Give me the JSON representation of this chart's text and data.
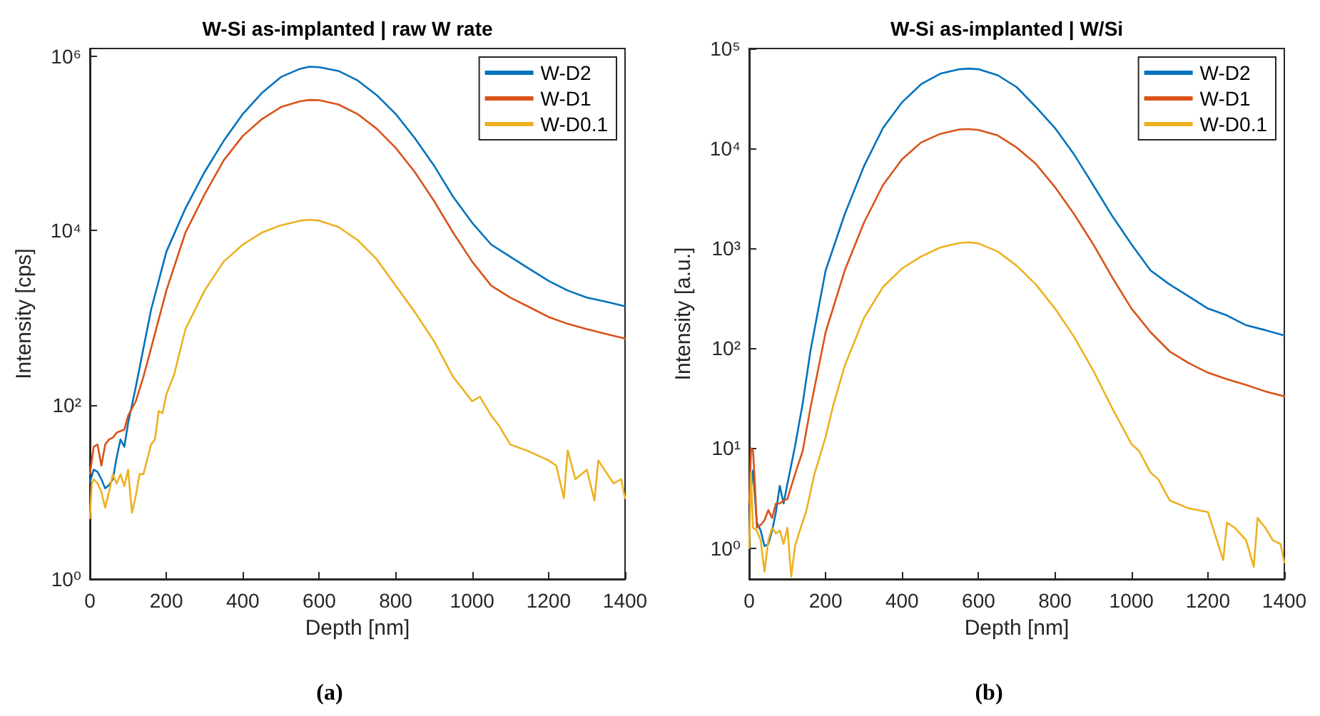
{
  "chart_data": [
    {
      "type": "line",
      "title": "W-Si as-implanted | raw W rate",
      "xlabel": "Depth [nm]",
      "ylabel": "Intensity [cps]",
      "annotations": [
        "(a)"
      ],
      "log": "y",
      "grid": false,
      "legend": "top right",
      "marker": "none",
      "line_style": "solid",
      "xlim": [
        0,
        1400
      ],
      "xticks": [
        0,
        200,
        400,
        600,
        800,
        1000,
        1200,
        1400
      ],
      "ylim": [
        1,
        1230000
      ],
      "yticks": [
        {
          "value": 1,
          "label": "10⁰"
        },
        {
          "value": 100,
          "label": "10²"
        },
        {
          "value": 10000,
          "label": "10⁴"
        },
        {
          "value": 1000000,
          "label": "10⁶"
        }
      ],
      "series": [
        {
          "name": "W-D2",
          "color": "#0072bd",
          "x": [
            0,
            10,
            20,
            30,
            40,
            50,
            60,
            70,
            80,
            90,
            100,
            120,
            140,
            160,
            200,
            250,
            300,
            350,
            400,
            450,
            500,
            550,
            575,
            600,
            650,
            700,
            750,
            800,
            850,
            900,
            950,
            1000,
            1050,
            1100,
            1150,
            1200,
            1250,
            1300,
            1350,
            1400
          ],
          "values": [
            13,
            18,
            17,
            14,
            11,
            12,
            14,
            25,
            40,
            33,
            62,
            160,
            445,
            1230,
            5700,
            18000,
            47000,
            107000,
            218000,
            380000,
            580000,
            720000,
            760000,
            750000,
            680000,
            530000,
            360000,
            218000,
            115000,
            56000,
            24500,
            12300,
            6900,
            5000,
            3630,
            2650,
            2050,
            1700,
            1530,
            1350
          ]
        },
        {
          "name": "W-D1",
          "color": "#d95319",
          "x": [
            0,
            10,
            20,
            30,
            40,
            50,
            60,
            70,
            80,
            90,
            100,
            120,
            140,
            160,
            200,
            250,
            300,
            350,
            400,
            450,
            500,
            550,
            575,
            600,
            650,
            700,
            750,
            800,
            850,
            900,
            950,
            1000,
            1050,
            1100,
            1150,
            1200,
            1250,
            1300,
            1350,
            1400
          ],
          "values": [
            16,
            33,
            35,
            20,
            35,
            40,
            42,
            48,
            50,
            52,
            75,
            110,
            210,
            445,
            2050,
            9500,
            26000,
            64000,
            122000,
            190000,
            262000,
            305000,
            316000,
            314000,
            280000,
            218000,
            148000,
            89000,
            47000,
            22000,
            9500,
            4400,
            2330,
            1700,
            1320,
            1020,
            850,
            740,
            650,
            575
          ]
        },
        {
          "name": "W-D0.1",
          "color": "#edb120",
          "x": [
            0,
            5,
            10,
            20,
            30,
            40,
            50,
            60,
            70,
            80,
            90,
            100,
            110,
            120,
            130,
            140,
            160,
            170,
            180,
            190,
            200,
            220,
            250,
            300,
            350,
            400,
            450,
            500,
            550,
            575,
            600,
            650,
            700,
            750,
            800,
            850,
            900,
            950,
            1000,
            1020,
            1050,
            1070,
            1100,
            1150,
            1200,
            1220,
            1240,
            1250,
            1270,
            1300,
            1320,
            1330,
            1350,
            1370,
            1390,
            1400
          ],
          "values": [
            5,
            12.5,
            14,
            12.5,
            10,
            6.6,
            10,
            16,
            12.5,
            16,
            11.7,
            18,
            5.8,
            9,
            16,
            16,
            35,
            40,
            85,
            80,
            132,
            220,
            740,
            2050,
            4400,
            6900,
            9500,
            11500,
            13000,
            13300,
            13000,
            11000,
            7800,
            4700,
            2330,
            1160,
            540,
            210,
            110,
            124,
            75,
            58,
            35,
            29,
            23,
            20,
            8.5,
            30,
            14,
            18,
            8,
            23,
            17,
            12.5,
            14,
            8.5
          ]
        }
      ]
    },
    {
      "type": "line",
      "title": "W-Si as-implanted | W/Si",
      "xlabel": "Depth [nm]",
      "ylabel": "Intensity [a.u.]",
      "annotations": [
        "(b)"
      ],
      "log": "y",
      "grid": false,
      "legend": "top right",
      "marker": "none",
      "line_style": "solid",
      "xlim": [
        0,
        1400
      ],
      "xticks": [
        0,
        200,
        400,
        600,
        800,
        1000,
        1200,
        1400
      ],
      "ylim": [
        0.49,
        100000
      ],
      "yticks": [
        {
          "value": 1,
          "label": "10⁰"
        },
        {
          "value": 10,
          "label": "10¹"
        },
        {
          "value": 100,
          "label": "10²"
        },
        {
          "value": 1000,
          "label": "10³"
        },
        {
          "value": 10000,
          "label": "10⁴"
        },
        {
          "value": 100000,
          "label": "10⁵"
        }
      ],
      "series": [
        {
          "name": "W-D2",
          "color": "#0072bd",
          "x": [
            0,
            10,
            20,
            30,
            40,
            50,
            60,
            70,
            80,
            90,
            100,
            120,
            140,
            160,
            200,
            250,
            300,
            350,
            400,
            450,
            500,
            550,
            575,
            600,
            650,
            700,
            750,
            800,
            850,
            900,
            950,
            1000,
            1050,
            1100,
            1150,
            1200,
            1250,
            1300,
            1350,
            1400
          ],
          "values": [
            2.8,
            6,
            1.8,
            1.5,
            1.05,
            1.1,
            1.5,
            2.3,
            4.2,
            2.8,
            4.4,
            10.5,
            28,
            93,
            600,
            2200,
            6600,
            16000,
            29000,
            44000,
            56000,
            62000,
            63000,
            62000,
            54000,
            41000,
            26000,
            16000,
            8700,
            4300,
            2100,
            1100,
            600,
            435,
            330,
            250,
            213,
            170,
            152,
            134
          ]
        },
        {
          "name": "W-D1",
          "color": "#d95319",
          "x": [
            0,
            5,
            10,
            15,
            20,
            30,
            40,
            50,
            60,
            70,
            80,
            90,
            100,
            120,
            140,
            160,
            200,
            250,
            300,
            350,
            400,
            450,
            500,
            550,
            575,
            600,
            650,
            700,
            750,
            800,
            850,
            900,
            950,
            1000,
            1050,
            1100,
            1150,
            1200,
            1250,
            1300,
            1350,
            1400
          ],
          "values": [
            2.8,
            10,
            9.4,
            4.4,
            1.6,
            1.7,
            1.9,
            2.4,
            2,
            2.8,
            2.8,
            3,
            3.1,
            5.5,
            9.4,
            25,
            145,
            600,
            1800,
            4300,
            7800,
            11500,
            14000,
            15500,
            15600,
            15300,
            13500,
            10200,
            7000,
            4100,
            2200,
            1100,
            510,
            250,
            145,
            93,
            71,
            57,
            49,
            43,
            37,
            33
          ]
        },
        {
          "name": "W-D0.1",
          "color": "#edb120",
          "x": [
            0,
            5,
            10,
            20,
            30,
            40,
            50,
            60,
            70,
            80,
            90,
            100,
            110,
            120,
            130,
            150,
            170,
            180,
            200,
            220,
            250,
            300,
            350,
            400,
            450,
            500,
            550,
            575,
            600,
            650,
            700,
            750,
            800,
            850,
            900,
            950,
            1000,
            1020,
            1050,
            1070,
            1100,
            1150,
            1200,
            1240,
            1250,
            1270,
            1300,
            1320,
            1330,
            1350,
            1370,
            1390,
            1400
          ],
          "values": [
            1,
            5.7,
            1.6,
            1.5,
            1.2,
            0.58,
            1.2,
            1.6,
            1.4,
            1.5,
            1.1,
            1.6,
            0.52,
            1.05,
            1.4,
            2.4,
            5.4,
            7.2,
            13,
            27,
            67,
            200,
            410,
            630,
            830,
            1020,
            1130,
            1150,
            1120,
            930,
            670,
            435,
            250,
            130,
            60,
            25,
            11,
            9.4,
            5.7,
            4.9,
            3,
            2.5,
            2.3,
            0.76,
            1.8,
            1.6,
            1.2,
            0.65,
            2,
            1.6,
            1.2,
            1.1,
            0.72
          ]
        }
      ]
    }
  ]
}
